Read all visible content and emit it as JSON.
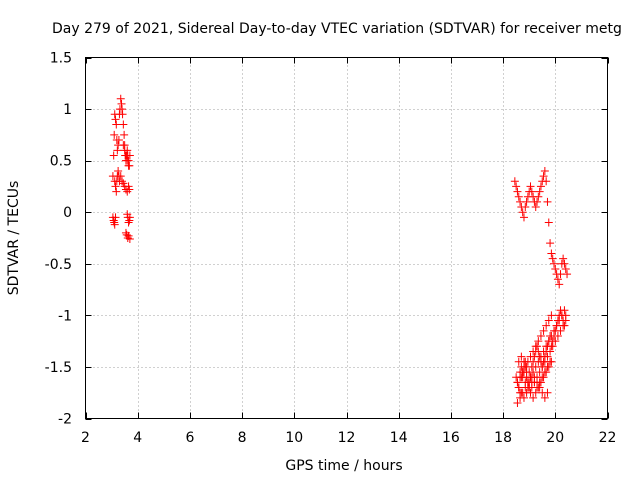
{
  "chart_data": {
    "type": "scatter",
    "title": "Day 279 of 2021, Sidereal Day-to-day VTEC variation (SDTVAR) for receiver metg",
    "xlabel": "GPS time / hours",
    "ylabel": "SDTVAR / TECUs",
    "xlim": [
      2,
      22
    ],
    "ylim": [
      -2,
      1.5
    ],
    "xticks": [
      2,
      4,
      6,
      8,
      10,
      12,
      14,
      16,
      18,
      20,
      22
    ],
    "yticks": [
      -2,
      -1.5,
      -1,
      -0.5,
      0,
      0.5,
      1,
      1.5
    ],
    "xtick_labels": [
      "2",
      "4",
      "6",
      "8",
      "10",
      "12",
      "14",
      "16",
      "18",
      "20",
      "22"
    ],
    "ytick_labels": [
      "-2",
      "-1.5",
      "-1",
      "-0.5",
      "0",
      "0.5",
      "1",
      "1.5"
    ],
    "grid": true,
    "marker": "+",
    "marker_color": "#ff0000",
    "series": [
      {
        "name": "SDTVAR",
        "x": [
          3.05,
          3.08,
          3.1,
          3.12,
          3.15,
          3.18,
          3.2,
          3.22,
          3.25,
          3.28,
          3.3,
          3.32,
          3.35,
          3.38,
          3.4,
          3.42,
          3.45,
          3.48,
          3.5,
          3.52,
          3.55,
          3.58,
          3.6,
          3.62,
          3.65,
          3.68,
          3.12,
          3.15,
          3.18,
          3.2,
          3.22,
          3.25,
          3.28,
          3.3,
          3.35,
          3.4,
          3.45,
          3.5,
          3.55,
          3.6,
          3.65,
          3.68,
          3.05,
          3.08,
          3.1,
          3.12,
          3.15,
          3.6,
          3.62,
          3.65,
          3.68,
          3.7,
          3.55,
          3.58,
          3.62,
          3.65,
          3.7,
          3.45,
          3.5,
          3.55,
          3.6,
          3.65,
          3.7,
          18.45,
          18.5,
          18.55,
          18.6,
          18.65,
          18.7,
          18.75,
          18.8,
          18.85,
          18.9,
          18.95,
          19.0,
          19.05,
          19.1,
          19.15,
          19.2,
          19.25,
          19.3,
          19.35,
          19.4,
          19.45,
          19.5,
          19.55,
          19.6,
          19.65,
          19.7,
          19.75,
          19.8,
          19.85,
          19.9,
          19.95,
          20.0,
          20.05,
          20.1,
          20.15,
          20.2,
          20.25,
          20.3,
          20.35,
          20.4,
          20.45,
          18.5,
          18.55,
          18.6,
          18.65,
          18.7,
          18.75,
          18.8,
          18.85,
          18.9,
          18.95,
          19.0,
          19.05,
          19.1,
          19.15,
          19.2,
          19.25,
          19.3,
          19.35,
          19.4,
          19.45,
          19.5,
          19.55,
          19.6,
          19.65,
          19.7,
          19.75,
          19.8,
          19.85,
          19.9,
          19.95,
          20.0,
          20.05,
          20.1,
          20.15,
          20.2,
          20.25,
          20.3,
          20.35,
          20.4,
          18.6,
          18.7,
          18.8,
          18.9,
          19.0,
          19.1,
          19.2,
          19.3,
          19.4,
          19.5,
          19.6,
          19.7,
          18.55,
          18.65,
          18.75,
          18.85,
          18.95,
          19.05,
          19.15,
          19.25,
          19.35,
          19.45,
          19.55,
          19.65,
          19.75,
          19.85,
          19.95,
          20.05,
          20.15,
          20.25,
          20.35,
          18.6,
          18.7,
          18.8,
          18.9,
          19.0,
          19.1,
          19.2,
          19.3,
          19.4,
          19.5,
          19.6,
          19.7,
          19.8,
          19.9,
          20.0,
          20.1,
          20.2,
          20.3,
          20.4,
          18.65,
          18.75,
          18.85,
          18.95,
          19.05,
          19.15,
          19.25,
          19.35,
          19.45,
          19.55,
          19.65,
          19.75,
          19.85,
          18.7,
          18.8,
          18.9,
          19.0,
          19.1,
          19.2,
          19.3,
          19.4,
          19.5,
          19.6,
          19.7,
          19.8,
          18.55,
          18.65,
          18.75,
          18.85,
          18.95,
          19.05,
          19.15,
          19.25,
          19.35,
          19.45,
          19.55,
          19.65,
          19.75,
          19.85
        ],
        "y": [
          0.35,
          0.55,
          0.75,
          0.95,
          0.9,
          0.85,
          0.7,
          0.6,
          0.65,
          0.7,
          0.95,
          1.0,
          1.1,
          1.05,
          1.0,
          0.95,
          0.85,
          0.75,
          0.65,
          0.55,
          0.5,
          0.55,
          0.6,
          0.55,
          0.5,
          0.45,
          0.3,
          0.25,
          0.2,
          0.3,
          0.35,
          0.4,
          0.35,
          0.3,
          0.35,
          0.3,
          0.28,
          0.25,
          0.22,
          0.2,
          0.25,
          0.22,
          -0.05,
          -0.08,
          -0.1,
          -0.12,
          -0.05,
          -0.02,
          -0.05,
          -0.1,
          -0.08,
          -0.05,
          -0.2,
          -0.22,
          -0.25,
          -0.23,
          -0.26,
          0.65,
          0.6,
          0.55,
          0.5,
          0.45,
          0.55,
          0.3,
          0.25,
          0.2,
          0.15,
          0.1,
          0.05,
          0.0,
          -0.05,
          0.05,
          0.1,
          0.15,
          0.2,
          0.25,
          0.2,
          0.15,
          0.1,
          0.05,
          0.1,
          0.15,
          0.2,
          0.25,
          0.3,
          0.35,
          0.4,
          0.3,
          0.1,
          -0.1,
          -0.3,
          -0.4,
          -0.45,
          -0.5,
          -0.55,
          -0.6,
          -0.65,
          -0.7,
          -0.6,
          -0.5,
          -0.45,
          -0.5,
          -0.55,
          -0.6,
          -1.6,
          -1.65,
          -1.7,
          -1.75,
          -1.6,
          -1.55,
          -1.5,
          -1.45,
          -1.55,
          -1.65,
          -1.7,
          -1.6,
          -1.5,
          -1.45,
          -1.4,
          -1.35,
          -1.3,
          -1.35,
          -1.4,
          -1.45,
          -1.5,
          -1.45,
          -1.4,
          -1.35,
          -1.3,
          -1.25,
          -1.2,
          -1.3,
          -1.25,
          -1.2,
          -1.15,
          -1.1,
          -1.05,
          -1.0,
          -0.95,
          -1.0,
          -1.05,
          -1.1,
          -1.0,
          -1.7,
          -1.75,
          -1.8,
          -1.75,
          -1.7,
          -1.65,
          -1.6,
          -1.65,
          -1.7,
          -1.75,
          -1.8,
          -1.75,
          -1.85,
          -1.8,
          -1.75,
          -1.7,
          -1.65,
          -1.6,
          -1.55,
          -1.5,
          -1.45,
          -1.4,
          -1.35,
          -1.3,
          -1.25,
          -1.2,
          -1.15,
          -1.1,
          -1.05,
          -1.0,
          -0.95,
          -1.45,
          -1.5,
          -1.55,
          -1.6,
          -1.65,
          -1.7,
          -1.65,
          -1.6,
          -1.55,
          -1.5,
          -1.45,
          -1.4,
          -1.35,
          -1.3,
          -1.25,
          -1.2,
          -1.15,
          -1.1,
          -1.05,
          -1.55,
          -1.6,
          -1.65,
          -1.7,
          -1.75,
          -1.8,
          -1.75,
          -1.7,
          -1.65,
          -1.6,
          -1.55,
          -1.5,
          -1.45,
          -1.4,
          -1.45,
          -1.5,
          -1.55,
          -1.6,
          -1.65,
          -1.7,
          -1.65,
          -1.6,
          -1.55,
          -1.5,
          -1.45,
          -1.65,
          -1.6,
          -1.55,
          -1.5,
          -1.45,
          -1.4,
          -1.35,
          -1.3,
          -1.25,
          -1.2,
          -1.15,
          -1.1,
          -1.05,
          -1.0
        ]
      }
    ]
  }
}
